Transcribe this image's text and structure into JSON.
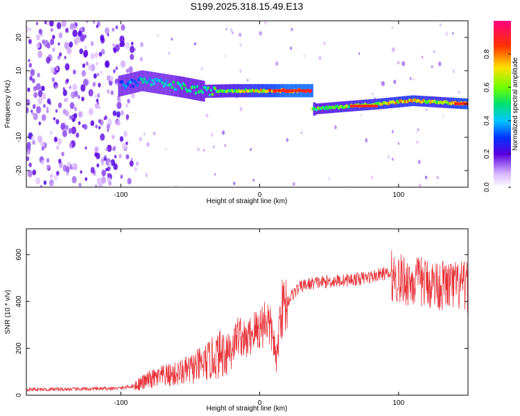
{
  "figure": {
    "title": "S199.2025.318.15.49.E13"
  },
  "colors": {
    "snr_line": "#e8333a",
    "axis": "#000000",
    "background": "#ffffff"
  },
  "chart_data": [
    {
      "type": "heatmap",
      "name": "spectrogram",
      "xlabel": "Height of straight line (km)",
      "ylabel": "Frequency (Hz)",
      "xlim": [
        -168,
        150
      ],
      "ylim": [
        -25,
        25
      ],
      "xticks": [
        -100,
        0,
        100
      ],
      "yticks": [
        -20,
        -10,
        0,
        10,
        20
      ],
      "colorbar": {
        "label": "Normalized spectral amplitude",
        "range": [
          0,
          1
        ],
        "ticks": [
          0.0,
          0.2,
          0.4,
          0.6,
          0.8
        ]
      },
      "ridge": [
        {
          "x": -100,
          "f": 5.5,
          "amp": 0.35
        },
        {
          "x": -85,
          "f": 7.0,
          "amp": 0.45
        },
        {
          "x": -70,
          "f": 6.0,
          "amp": 0.5
        },
        {
          "x": -55,
          "f": 5.0,
          "amp": 0.55
        },
        {
          "x": -40,
          "f": 3.8,
          "amp": 0.55
        },
        {
          "x": -20,
          "f": 4.0,
          "amp": 0.65
        },
        {
          "x": 0,
          "f": 4.0,
          "amp": 0.8
        },
        {
          "x": 20,
          "f": 4.0,
          "amp": 0.95
        },
        {
          "x": 37,
          "f": 4.0,
          "amp": 0.95
        },
        {
          "x": 40,
          "f": -1.5,
          "amp": 0.6
        },
        {
          "x": 60,
          "f": -0.8,
          "amp": 0.65
        },
        {
          "x": 85,
          "f": 0.0,
          "amp": 0.75
        },
        {
          "x": 110,
          "f": 1.0,
          "amp": 0.8
        },
        {
          "x": 130,
          "f": 0.5,
          "amp": 0.7
        },
        {
          "x": 150,
          "f": 0.0,
          "amp": 0.9
        }
      ]
    },
    {
      "type": "line",
      "name": "snr",
      "xlabel": "Height of straight line (km)",
      "ylabel": "SNR (10 * v/v)",
      "xlim": [
        -168,
        150
      ],
      "ylim": [
        0,
        710
      ],
      "xticks": [
        -100,
        0,
        100
      ],
      "yticks": [
        0,
        200,
        400,
        600
      ],
      "series": [
        {
          "name": "SNR",
          "x": [
            -168,
            -150,
            -130,
            -110,
            -100,
            -90,
            -80,
            -70,
            -60,
            -50,
            -40,
            -30,
            -20,
            -15,
            -10,
            -5,
            0,
            5,
            10,
            12,
            15,
            20,
            25,
            30,
            40,
            50,
            60,
            70,
            80,
            90,
            95,
            100,
            110,
            120,
            130,
            140,
            150
          ],
          "y": [
            25,
            25,
            26,
            28,
            30,
            40,
            65,
            80,
            90,
            110,
            135,
            170,
            205,
            265,
            225,
            270,
            285,
            330,
            240,
            130,
            360,
            400,
            440,
            465,
            480,
            485,
            490,
            495,
            505,
            520,
            510,
            495,
            485,
            480,
            470,
            465,
            460
          ]
        }
      ]
    }
  ]
}
